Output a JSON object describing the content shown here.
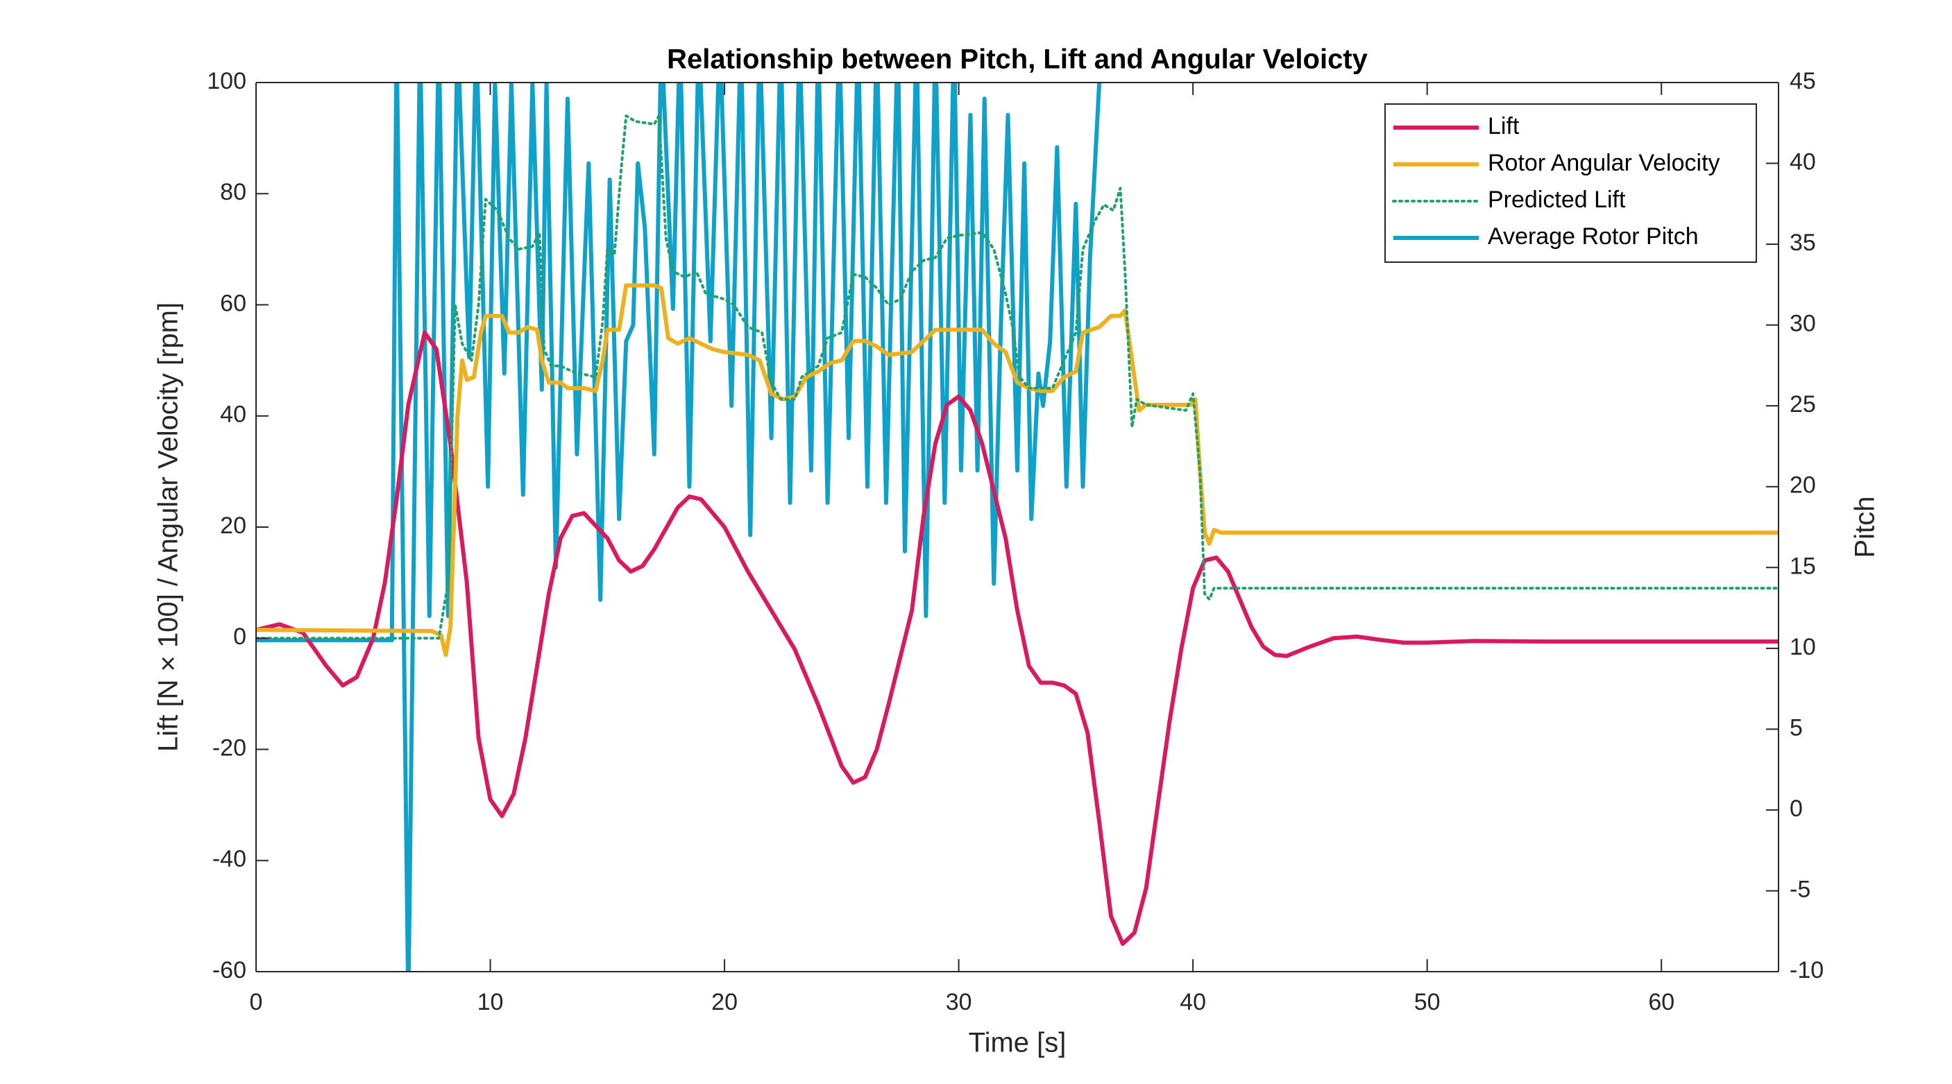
{
  "chart_data": {
    "type": "line",
    "title": "Relationship between Pitch, Lift and Angular Veloicty",
    "xlabel": "Time [s]",
    "ylabel": "Lift [N × 100] / Angular Velocity [rpm]",
    "y2label": "Pitch",
    "xlim": [
      0,
      65
    ],
    "xticks": [
      0,
      10,
      20,
      30,
      40,
      50,
      60
    ],
    "ylim": [
      -60,
      100
    ],
    "yticks": [
      -60,
      -40,
      -20,
      0,
      20,
      40,
      60,
      80,
      100
    ],
    "y2lim": [
      -10,
      45
    ],
    "y2ticks": [
      -10,
      -5,
      0,
      5,
      10,
      15,
      20,
      25,
      30,
      35,
      40,
      45
    ],
    "grid": false,
    "legend": "upper right",
    "series": [
      {
        "name": "Lift",
        "color": "#d81b60",
        "line_style": "solid",
        "axis": "y",
        "x": [
          0,
          1,
          2,
          3,
          3.7,
          4.3,
          5,
          5.5,
          6,
          6.5,
          7.2,
          7.7,
          8.3,
          9,
          9.5,
          10,
          10.5,
          11,
          11.5,
          12,
          12.5,
          13,
          13.5,
          14,
          15,
          15.5,
          16,
          16.5,
          17,
          18,
          18.5,
          19,
          20,
          21,
          22,
          23,
          24,
          25,
          25.5,
          26,
          26.5,
          27,
          28,
          28.5,
          29,
          29.5,
          30,
          30.5,
          31,
          32,
          32.5,
          33,
          33.5,
          34,
          34.5,
          35,
          35.5,
          36,
          36.5,
          37,
          37.5,
          38,
          38.5,
          39,
          39.5,
          40,
          40.5,
          41,
          41.5,
          42,
          42.5,
          43,
          43.5,
          44,
          45,
          46,
          47,
          48,
          49,
          50,
          52,
          55,
          60,
          65
        ],
        "values": [
          1.5,
          2.5,
          1,
          -5,
          -8.5,
          -7,
          0,
          10,
          25,
          42,
          55,
          52,
          35,
          10,
          -18,
          -29,
          -32,
          -28,
          -18,
          -5,
          8,
          18,
          22,
          22.5,
          18,
          14,
          12,
          13,
          16,
          23.5,
          25.5,
          25,
          20,
          12,
          5,
          -2,
          -12,
          -23,
          -26,
          -25,
          -20,
          -12,
          5,
          22,
          35,
          42,
          43.5,
          41,
          35,
          18,
          5,
          -5,
          -8,
          -8,
          -8.5,
          -10,
          -17,
          -33,
          -50,
          -55,
          -53,
          -45,
          -30,
          -15,
          -2,
          9,
          14,
          14.5,
          12,
          7,
          2,
          -1.5,
          -3,
          -3.2,
          -1.5,
          0,
          0.3,
          -0.3,
          -0.8,
          -0.8,
          -0.5,
          -0.6,
          -0.6,
          -0.6
        ]
      },
      {
        "name": "Rotor Angular Velocity",
        "color": "#edb120",
        "line_style": "solid",
        "axis": "y",
        "x": [
          0,
          7.5,
          7.9,
          8.1,
          8.3,
          8.6,
          8.8,
          9,
          9.3,
          9.6,
          9.8,
          10.5,
          10.8,
          11.2,
          11.6,
          12,
          12.2,
          12.5,
          13,
          13.3,
          14,
          14.5,
          14.8,
          15,
          15.5,
          15.8,
          17,
          17.3,
          17.6,
          18,
          18.5,
          19,
          19.5,
          20,
          21,
          21.5,
          22,
          22.5,
          23,
          23.5,
          24,
          24.5,
          25,
          25.5,
          26,
          26.5,
          27,
          28,
          29,
          30,
          31,
          31.5,
          32,
          32.5,
          33,
          33.5,
          34,
          34.5,
          35,
          35.3,
          36,
          36.5,
          36.9,
          37.1,
          37.4,
          37.7,
          38,
          39.5,
          39.9,
          40.1,
          40.3,
          40.5,
          40.7,
          40.9,
          41.2,
          65
        ],
        "values": [
          1.5,
          1.3,
          0.5,
          -3,
          2,
          40,
          50,
          46.5,
          47,
          55,
          58,
          58,
          55,
          55,
          56,
          55.5,
          50,
          46,
          46,
          45,
          45,
          44.5,
          50,
          55.5,
          55.5,
          63.5,
          63.5,
          63,
          54,
          53,
          54,
          53,
          52,
          51.5,
          51,
          50,
          44,
          43,
          43.5,
          47,
          48,
          49.5,
          50,
          53.5,
          53.5,
          52.5,
          51,
          51.5,
          55.5,
          55.5,
          55.5,
          53,
          51.5,
          46,
          45,
          44.5,
          44.5,
          47,
          48,
          55,
          56,
          58,
          58,
          59,
          50,
          41,
          42,
          42,
          42,
          43,
          30,
          19,
          17,
          19.5,
          19,
          19
        ]
      },
      {
        "name": "Predicted Lift",
        "color": "#23a06b",
        "line_style": "dotted",
        "axis": "y",
        "x": [
          0,
          7.8,
          8.2,
          8.5,
          8.8,
          9.2,
          9.5,
          9.8,
          10.3,
          10.8,
          11.2,
          11.8,
          12.1,
          12.3,
          12.6,
          13,
          13.5,
          14,
          14.5,
          14.8,
          15,
          15.3,
          15.6,
          15.8,
          16.2,
          17,
          17.2,
          17.5,
          17.8,
          18.3,
          18.8,
          19.2,
          20,
          20.4,
          21,
          21.6,
          22,
          22.4,
          23,
          23.3,
          24,
          24.4,
          25,
          25.5,
          26,
          26.5,
          27,
          27.5,
          28,
          28.5,
          29,
          29.5,
          30,
          31,
          31.5,
          32,
          32.3,
          32.6,
          33,
          34,
          34.5,
          35,
          35.3,
          35.8,
          36.2,
          36.6,
          36.9,
          37.1,
          37.4,
          37.6,
          38,
          39.7,
          40,
          40.3,
          40.5,
          40.7,
          40.9,
          65
        ],
        "values": [
          0,
          0,
          10,
          60,
          53,
          50,
          60,
          79,
          77,
          72,
          70,
          70.5,
          73,
          52,
          49,
          49,
          48,
          47.5,
          47,
          57,
          70,
          69,
          85,
          94,
          93,
          92.5,
          94,
          72,
          66,
          65,
          66,
          62,
          61,
          60,
          56,
          55,
          46,
          43,
          43,
          47,
          49,
          54,
          55,
          65.5,
          65,
          63,
          60,
          61,
          66,
          68,
          68.5,
          72,
          72.5,
          73,
          70,
          62,
          56,
          47,
          45,
          45,
          50,
          55,
          70,
          75,
          78,
          77,
          81,
          66,
          38,
          43,
          42,
          41,
          44,
          30,
          8,
          7,
          9,
          9
        ]
      },
      {
        "name": "Average Rotor Pitch",
        "color": "#0ea1c9",
        "line_style": "solid",
        "axis": "y2",
        "x": [
          0,
          5.8,
          6,
          6.5,
          7,
          7.4,
          7.8,
          8.2,
          8.6,
          9.1,
          9.4,
          9.9,
          10.2,
          10.6,
          10.9,
          11.4,
          11.8,
          12.2,
          12.4,
          12.8,
          13.3,
          13.7,
          14.2,
          14.7,
          15.1,
          15.5,
          15.8,
          16.1,
          16.3,
          16.6,
          17,
          17.3,
          17.8,
          18.1,
          18.5,
          18.9,
          19.4,
          19.8,
          20.3,
          20.7,
          21.1,
          21.5,
          22,
          22.4,
          22.8,
          23.2,
          23.7,
          24,
          24.4,
          24.9,
          25.3,
          25.7,
          26.1,
          26.5,
          26.9,
          27.4,
          27.7,
          28.2,
          28.6,
          29,
          29.4,
          29.8,
          30.1,
          30.5,
          30.8,
          31.1,
          31.5,
          31.8,
          32.1,
          32.5,
          32.8,
          33.1,
          33.4,
          33.6,
          33.9,
          34.2,
          34.6,
          35,
          35.3,
          35.6,
          36,
          36.2
        ],
        "values": [
          10.5,
          10.5,
          48,
          -12,
          48,
          12,
          48,
          12,
          48,
          28,
          48,
          20,
          45,
          27,
          45,
          19.5,
          45,
          26,
          45,
          15,
          44,
          22,
          40,
          13,
          39,
          18,
          29,
          30,
          40,
          36,
          22,
          48,
          31,
          48,
          20,
          48,
          29,
          48,
          25,
          48,
          17,
          48,
          23,
          48,
          19,
          48,
          21,
          48,
          19,
          48,
          23,
          48,
          20,
          48,
          19,
          48,
          16,
          48,
          12,
          48,
          19,
          48,
          21,
          43,
          21,
          44,
          14,
          30,
          43,
          21,
          40,
          18,
          27,
          25,
          29,
          41,
          20,
          37.5,
          20,
          34,
          45,
          48
        ]
      }
    ]
  }
}
